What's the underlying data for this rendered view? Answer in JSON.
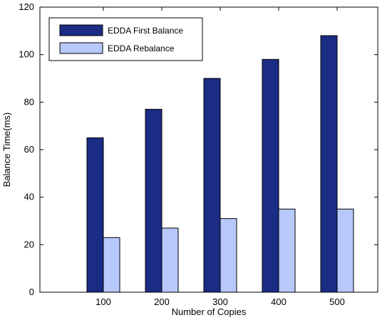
{
  "chart_data": {
    "type": "bar",
    "categories": [
      "100",
      "200",
      "300",
      "400",
      "500"
    ],
    "series": [
      {
        "name": "EDDA First Balance",
        "values": [
          65,
          77,
          90,
          98,
          108
        ],
        "color": "#1a2c84"
      },
      {
        "name": "EDDA Rebalance",
        "values": [
          23,
          27,
          31,
          35,
          35
        ],
        "color": "#b7c8fb"
      }
    ],
    "xlabel": "Number of Copies",
    "ylabel": "Balance Time(ms)",
    "ylim": [
      0,
      120
    ],
    "yticks": [
      "0",
      "20",
      "40",
      "60",
      "80",
      "100",
      "120"
    ],
    "grid": false,
    "legend_position": "top-left"
  }
}
